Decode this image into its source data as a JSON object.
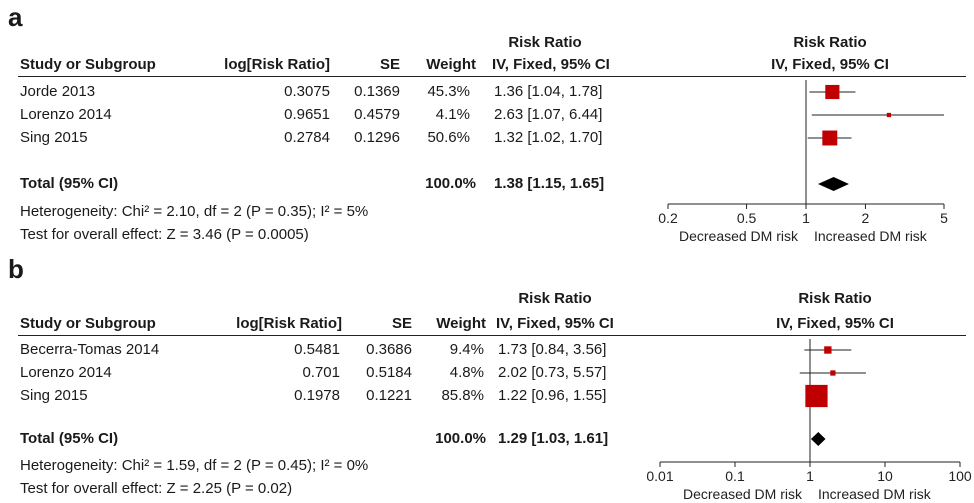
{
  "panels": {
    "a": {
      "letter": "a",
      "headers": {
        "study": "Study or Subgroup",
        "log": "log[Risk Ratio]",
        "se": "SE",
        "weight": "Weight",
        "rr_top": "Risk Ratio",
        "rr_method": "IV, Fixed, 95% CI",
        "plot_top": "Risk Ratio",
        "plot_method": "IV, Fixed, 95% CI"
      },
      "rows": [
        {
          "study": "Jorde 2013",
          "log": "0.3075",
          "se": "0.1369",
          "weight": "45.3%",
          "ci": "1.36 [1.04, 1.78]"
        },
        {
          "study": "Lorenzo 2014",
          "log": "0.9651",
          "se": "0.4579",
          "weight": "4.1%",
          "ci": "2.63 [1.07, 6.44]"
        },
        {
          "study": "Sing 2015",
          "log": "0.2784",
          "se": "0.1296",
          "weight": "50.6%",
          "ci": "1.32 [1.02, 1.70]"
        }
      ],
      "total": {
        "label": "Total (95% CI)",
        "weight": "100.0%",
        "ci": "1.38 [1.15, 1.65]"
      },
      "heterogeneity": "Heterogeneity: Chi² = 2.10, df = 2 (P = 0.35); I² = 5%",
      "overall": "Test for overall effect: Z = 3.46 (P = 0.0005)",
      "axis_left_label": "Decreased DM risk",
      "axis_right_label": "Increased DM risk"
    },
    "b": {
      "letter": "b",
      "headers": {
        "study": "Study or Subgroup",
        "log": "log[Risk Ratio]",
        "se": "SE",
        "weight": "Weight",
        "rr_top": "Risk Ratio",
        "rr_method": "IV, Fixed, 95% CI",
        "plot_top": "Risk Ratio",
        "plot_method": "IV, Fixed, 95% CI"
      },
      "rows": [
        {
          "study": "Becerra-Tomas 2014",
          "log": "0.5481",
          "se": "0.3686",
          "weight": "9.4%",
          "ci": "1.73 [0.84, 3.56]"
        },
        {
          "study": "Lorenzo 2014",
          "log": "0.701",
          "se": "0.5184",
          "weight": "4.8%",
          "ci": "2.02 [0.73, 5.57]"
        },
        {
          "study": "Sing 2015",
          "log": "0.1978",
          "se": "0.1221",
          "weight": "85.8%",
          "ci": "1.22 [0.96, 1.55]"
        }
      ],
      "total": {
        "label": "Total (95% CI)",
        "weight": "100.0%",
        "ci": "1.29 [1.03, 1.61]"
      },
      "heterogeneity": "Heterogeneity: Chi² = 1.59, df = 2 (P = 0.45); I² = 0%",
      "overall": "Test for overall effect: Z = 2.25 (P = 0.02)",
      "axis_left_label": "Decreased DM risk",
      "axis_right_label": "Increased DM risk"
    }
  },
  "colors": {
    "study_marker": "#c00000",
    "total_marker": "#000000",
    "text": "#1a1a1a"
  },
  "chart_data": [
    {
      "type": "scatter",
      "subtype": "forest-plot",
      "xscale": "log",
      "xlim": [
        0.2,
        5
      ],
      "xticks": [
        0.2,
        0.5,
        1,
        2,
        5
      ],
      "xtick_labels": [
        "0.2",
        "0.5",
        "1",
        "2",
        "5"
      ],
      "reference_line": 1,
      "studies": [
        {
          "name": "Jorde 2013",
          "rr": 1.36,
          "lower": 1.04,
          "upper": 1.78,
          "weight": 45.3
        },
        {
          "name": "Lorenzo 2014",
          "rr": 2.63,
          "lower": 1.07,
          "upper": 6.44,
          "weight": 4.1
        },
        {
          "name": "Sing 2015",
          "rr": 1.32,
          "lower": 1.02,
          "upper": 1.7,
          "weight": 50.6
        }
      ],
      "total": {
        "rr": 1.38,
        "lower": 1.15,
        "upper": 1.65
      }
    },
    {
      "type": "scatter",
      "subtype": "forest-plot",
      "xscale": "log",
      "xlim": [
        0.01,
        100
      ],
      "xticks": [
        0.01,
        0.1,
        1,
        10,
        100
      ],
      "xtick_labels": [
        "0.01",
        "0.1",
        "1",
        "10",
        "100"
      ],
      "reference_line": 1,
      "studies": [
        {
          "name": "Becerra-Tomas 2014",
          "rr": 1.73,
          "lower": 0.84,
          "upper": 3.56,
          "weight": 9.4
        },
        {
          "name": "Lorenzo 2014",
          "rr": 2.02,
          "lower": 0.73,
          "upper": 5.57,
          "weight": 4.8
        },
        {
          "name": "Sing 2015",
          "rr": 1.22,
          "lower": 0.96,
          "upper": 1.55,
          "weight": 85.8
        }
      ],
      "total": {
        "rr": 1.29,
        "lower": 1.03,
        "upper": 1.61
      }
    }
  ]
}
